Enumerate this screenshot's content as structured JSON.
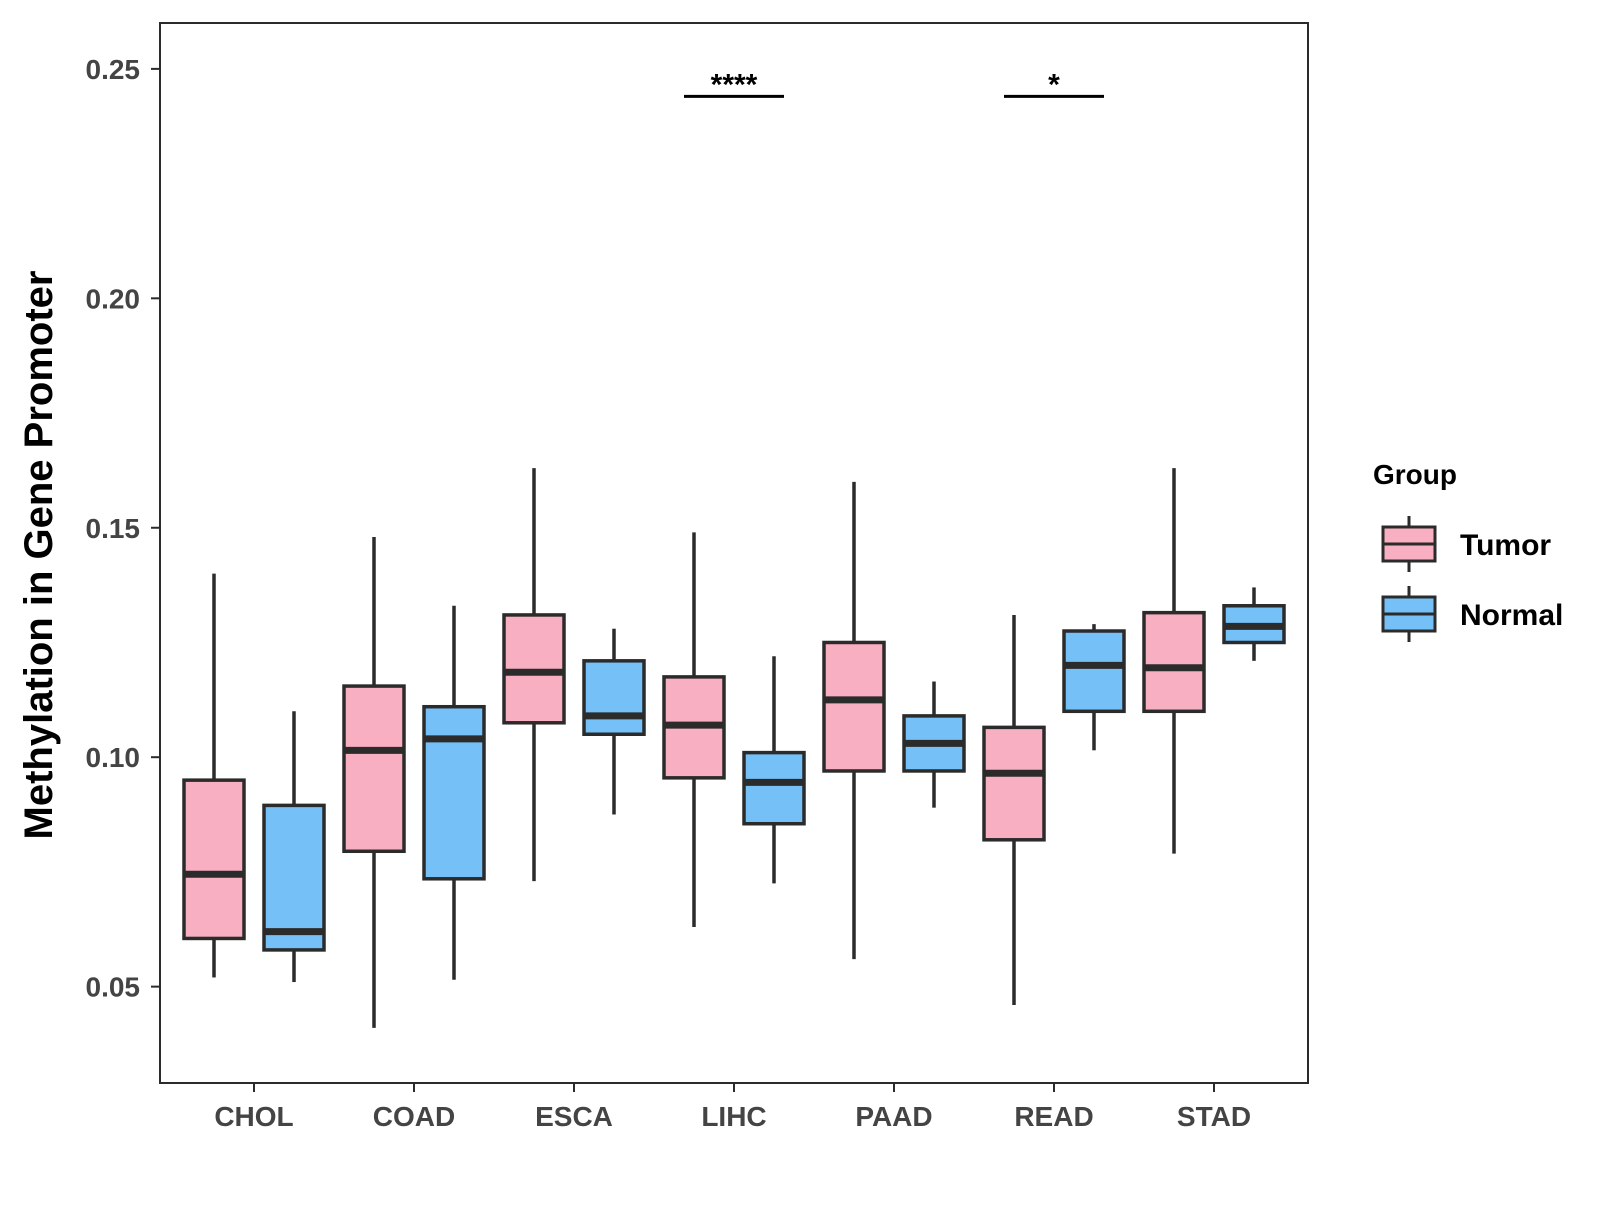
{
  "chart_data": {
    "type": "boxplot",
    "title": "",
    "xlabel": "",
    "ylabel": "Methylation in Gene Promoter",
    "ylim": [
      0.029,
      0.26
    ],
    "yticks": [
      "0.05",
      "0.10",
      "0.15",
      "0.20",
      "0.25"
    ],
    "ytick_values": [
      0.05,
      0.1,
      0.15,
      0.2,
      0.25
    ],
    "categories": [
      "CHOL",
      "COAD",
      "ESCA",
      "LIHC",
      "PAAD",
      "READ",
      "STAD"
    ],
    "legend": {
      "title": "Group",
      "position": "right",
      "entries": [
        {
          "name": "Tumor",
          "color": "#F9AFC2"
        },
        {
          "name": "Normal",
          "color": "#76C0F8"
        }
      ]
    },
    "series": [
      {
        "name": "Tumor",
        "color": "#F9AFC2",
        "boxes": [
          {
            "category": "CHOL",
            "min": 0.052,
            "q1": 0.0605,
            "median": 0.0745,
            "q3": 0.095,
            "max": 0.14
          },
          {
            "category": "COAD",
            "min": 0.041,
            "q1": 0.0795,
            "median": 0.1015,
            "q3": 0.1155,
            "max": 0.148
          },
          {
            "category": "ESCA",
            "min": 0.073,
            "q1": 0.1075,
            "median": 0.1185,
            "q3": 0.131,
            "max": 0.163
          },
          {
            "category": "LIHC",
            "min": 0.063,
            "q1": 0.0955,
            "median": 0.107,
            "q3": 0.1175,
            "max": 0.149
          },
          {
            "category": "PAAD",
            "min": 0.056,
            "q1": 0.097,
            "median": 0.1125,
            "q3": 0.125,
            "max": 0.16
          },
          {
            "category": "READ",
            "min": 0.046,
            "q1": 0.082,
            "median": 0.0965,
            "q3": 0.1065,
            "max": 0.131
          },
          {
            "category": "STAD",
            "min": 0.079,
            "q1": 0.11,
            "median": 0.1195,
            "q3": 0.1315,
            "max": 0.163
          }
        ]
      },
      {
        "name": "Normal",
        "color": "#76C0F8",
        "boxes": [
          {
            "category": "CHOL",
            "min": 0.051,
            "q1": 0.058,
            "median": 0.062,
            "q3": 0.0895,
            "max": 0.11
          },
          {
            "category": "COAD",
            "min": 0.0515,
            "q1": 0.0735,
            "median": 0.104,
            "q3": 0.111,
            "max": 0.133
          },
          {
            "category": "ESCA",
            "min": 0.0875,
            "q1": 0.105,
            "median": 0.109,
            "q3": 0.121,
            "max": 0.128
          },
          {
            "category": "LIHC",
            "min": 0.0725,
            "q1": 0.0855,
            "median": 0.0945,
            "q3": 0.101,
            "max": 0.122
          },
          {
            "category": "PAAD",
            "min": 0.089,
            "q1": 0.097,
            "median": 0.103,
            "q3": 0.109,
            "max": 0.1165
          },
          {
            "category": "READ",
            "min": 0.1015,
            "q1": 0.11,
            "median": 0.12,
            "q3": 0.1275,
            "max": 0.129
          },
          {
            "category": "STAD",
            "min": 0.121,
            "q1": 0.125,
            "median": 0.1285,
            "q3": 0.133,
            "max": 0.137
          }
        ]
      }
    ],
    "annotations": [
      {
        "category": "LIHC",
        "label": "****",
        "y": 0.244
      },
      {
        "category": "READ",
        "label": "*",
        "y": 0.244
      }
    ]
  }
}
